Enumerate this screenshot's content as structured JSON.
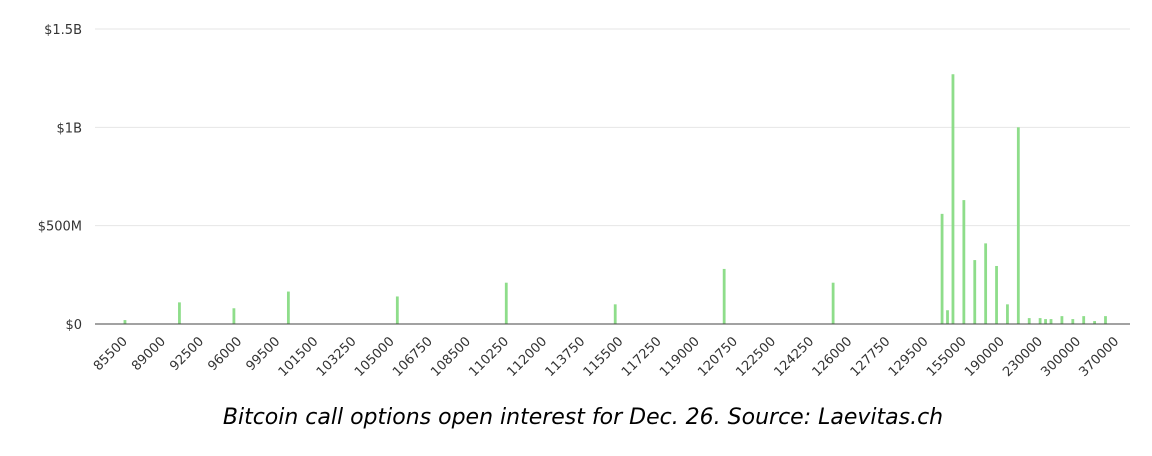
{
  "chart_data": {
    "type": "bar",
    "caption": "Bitcoin call options open interest for Dec. 26. Source: Laevitas.ch",
    "color": "#8edd8a",
    "grid": true,
    "ylim": [
      0,
      1500000000
    ],
    "yticks": [
      {
        "value": 0,
        "label": "$0"
      },
      {
        "value": 500000000,
        "label": "$500M"
      },
      {
        "value": 1000000000,
        "label": "$1B"
      },
      {
        "value": 1500000000,
        "label": "$1.5B"
      }
    ],
    "categories": [
      null,
      null,
      null,
      null,
      null,
      "85500",
      null,
      null,
      null,
      null,
      null,
      null,
      "89000",
      null,
      null,
      null,
      null,
      null,
      null,
      "92500",
      null,
      null,
      null,
      null,
      null,
      null,
      "96000",
      null,
      null,
      null,
      null,
      null,
      null,
      "99500",
      null,
      null,
      null,
      null,
      null,
      null,
      "101500",
      null,
      null,
      null,
      null,
      null,
      null,
      "103250",
      null,
      null,
      null,
      null,
      null,
      null,
      "105000",
      null,
      null,
      null,
      null,
      null,
      null,
      "106750",
      null,
      null,
      null,
      null,
      null,
      null,
      "108500",
      null,
      null,
      null,
      null,
      null,
      null,
      "110250",
      null,
      null,
      null,
      null,
      null,
      null,
      "112000",
      null,
      null,
      null,
      null,
      null,
      null,
      "113750",
      null,
      null,
      null,
      null,
      null,
      null,
      "115500",
      null,
      null,
      null,
      null,
      null,
      null,
      "117250",
      null,
      null,
      null,
      null,
      null,
      null,
      "119000",
      null,
      null,
      null,
      null,
      null,
      null,
      "120750",
      null,
      null,
      null,
      null,
      null,
      null,
      "122500",
      null,
      null,
      null,
      null,
      null,
      null,
      "124250",
      null,
      null,
      null,
      null,
      null,
      null,
      "126000",
      null,
      null,
      null,
      null,
      null,
      null,
      "127750",
      null,
      null,
      null,
      null,
      null,
      null,
      "129500",
      null,
      null,
      null,
      null,
      null,
      null,
      "155000",
      null,
      null,
      null,
      null,
      null,
      null,
      "190000",
      null,
      null,
      null,
      null,
      null,
      null,
      "230000",
      null,
      null,
      null,
      null,
      null,
      null,
      "300000",
      null,
      null,
      null,
      null,
      null,
      null,
      "370000",
      null,
      null
    ],
    "values": [
      null,
      null,
      null,
      null,
      null,
      20000000,
      null,
      null,
      null,
      null,
      null,
      null,
      null,
      null,
      null,
      110000000,
      null,
      null,
      null,
      null,
      null,
      null,
      null,
      null,
      null,
      80000000,
      null,
      null,
      null,
      null,
      null,
      null,
      null,
      null,
      null,
      165000000,
      null,
      null,
      null,
      null,
      null,
      null,
      null,
      null,
      null,
      null,
      null,
      null,
      null,
      null,
      null,
      null,
      null,
      null,
      null,
      140000000,
      null,
      null,
      null,
      null,
      null,
      null,
      null,
      null,
      null,
      null,
      null,
      null,
      null,
      null,
      null,
      null,
      null,
      null,
      null,
      210000000,
      null,
      null,
      null,
      null,
      null,
      null,
      null,
      null,
      null,
      null,
      null,
      null,
      null,
      null,
      null,
      null,
      null,
      null,
      null,
      100000000,
      null,
      null,
      null,
      null,
      null,
      null,
      null,
      null,
      null,
      null,
      null,
      null,
      null,
      null,
      null,
      null,
      null,
      null,
      null,
      280000000,
      null,
      null,
      null,
      null,
      null,
      null,
      null,
      null,
      null,
      null,
      null,
      null,
      null,
      null,
      null,
      null,
      null,
      null,
      null,
      210000000,
      null,
      null,
      null,
      null,
      null,
      null,
      null,
      null,
      null,
      null,
      null,
      null,
      null,
      null,
      null,
      null,
      null,
      null,
      null,
      560000000,
      70000000,
      1270000000,
      null,
      630000000,
      null,
      325000000,
      null,
      410000000,
      null,
      295000000,
      null,
      100000000,
      null,
      1000000000,
      null,
      30000000,
      null,
      30000000,
      25000000,
      25000000,
      null,
      40000000,
      null,
      25000000,
      null,
      40000000,
      null,
      15000000,
      null,
      40000000,
      null,
      null,
      null,
      null
    ]
  }
}
